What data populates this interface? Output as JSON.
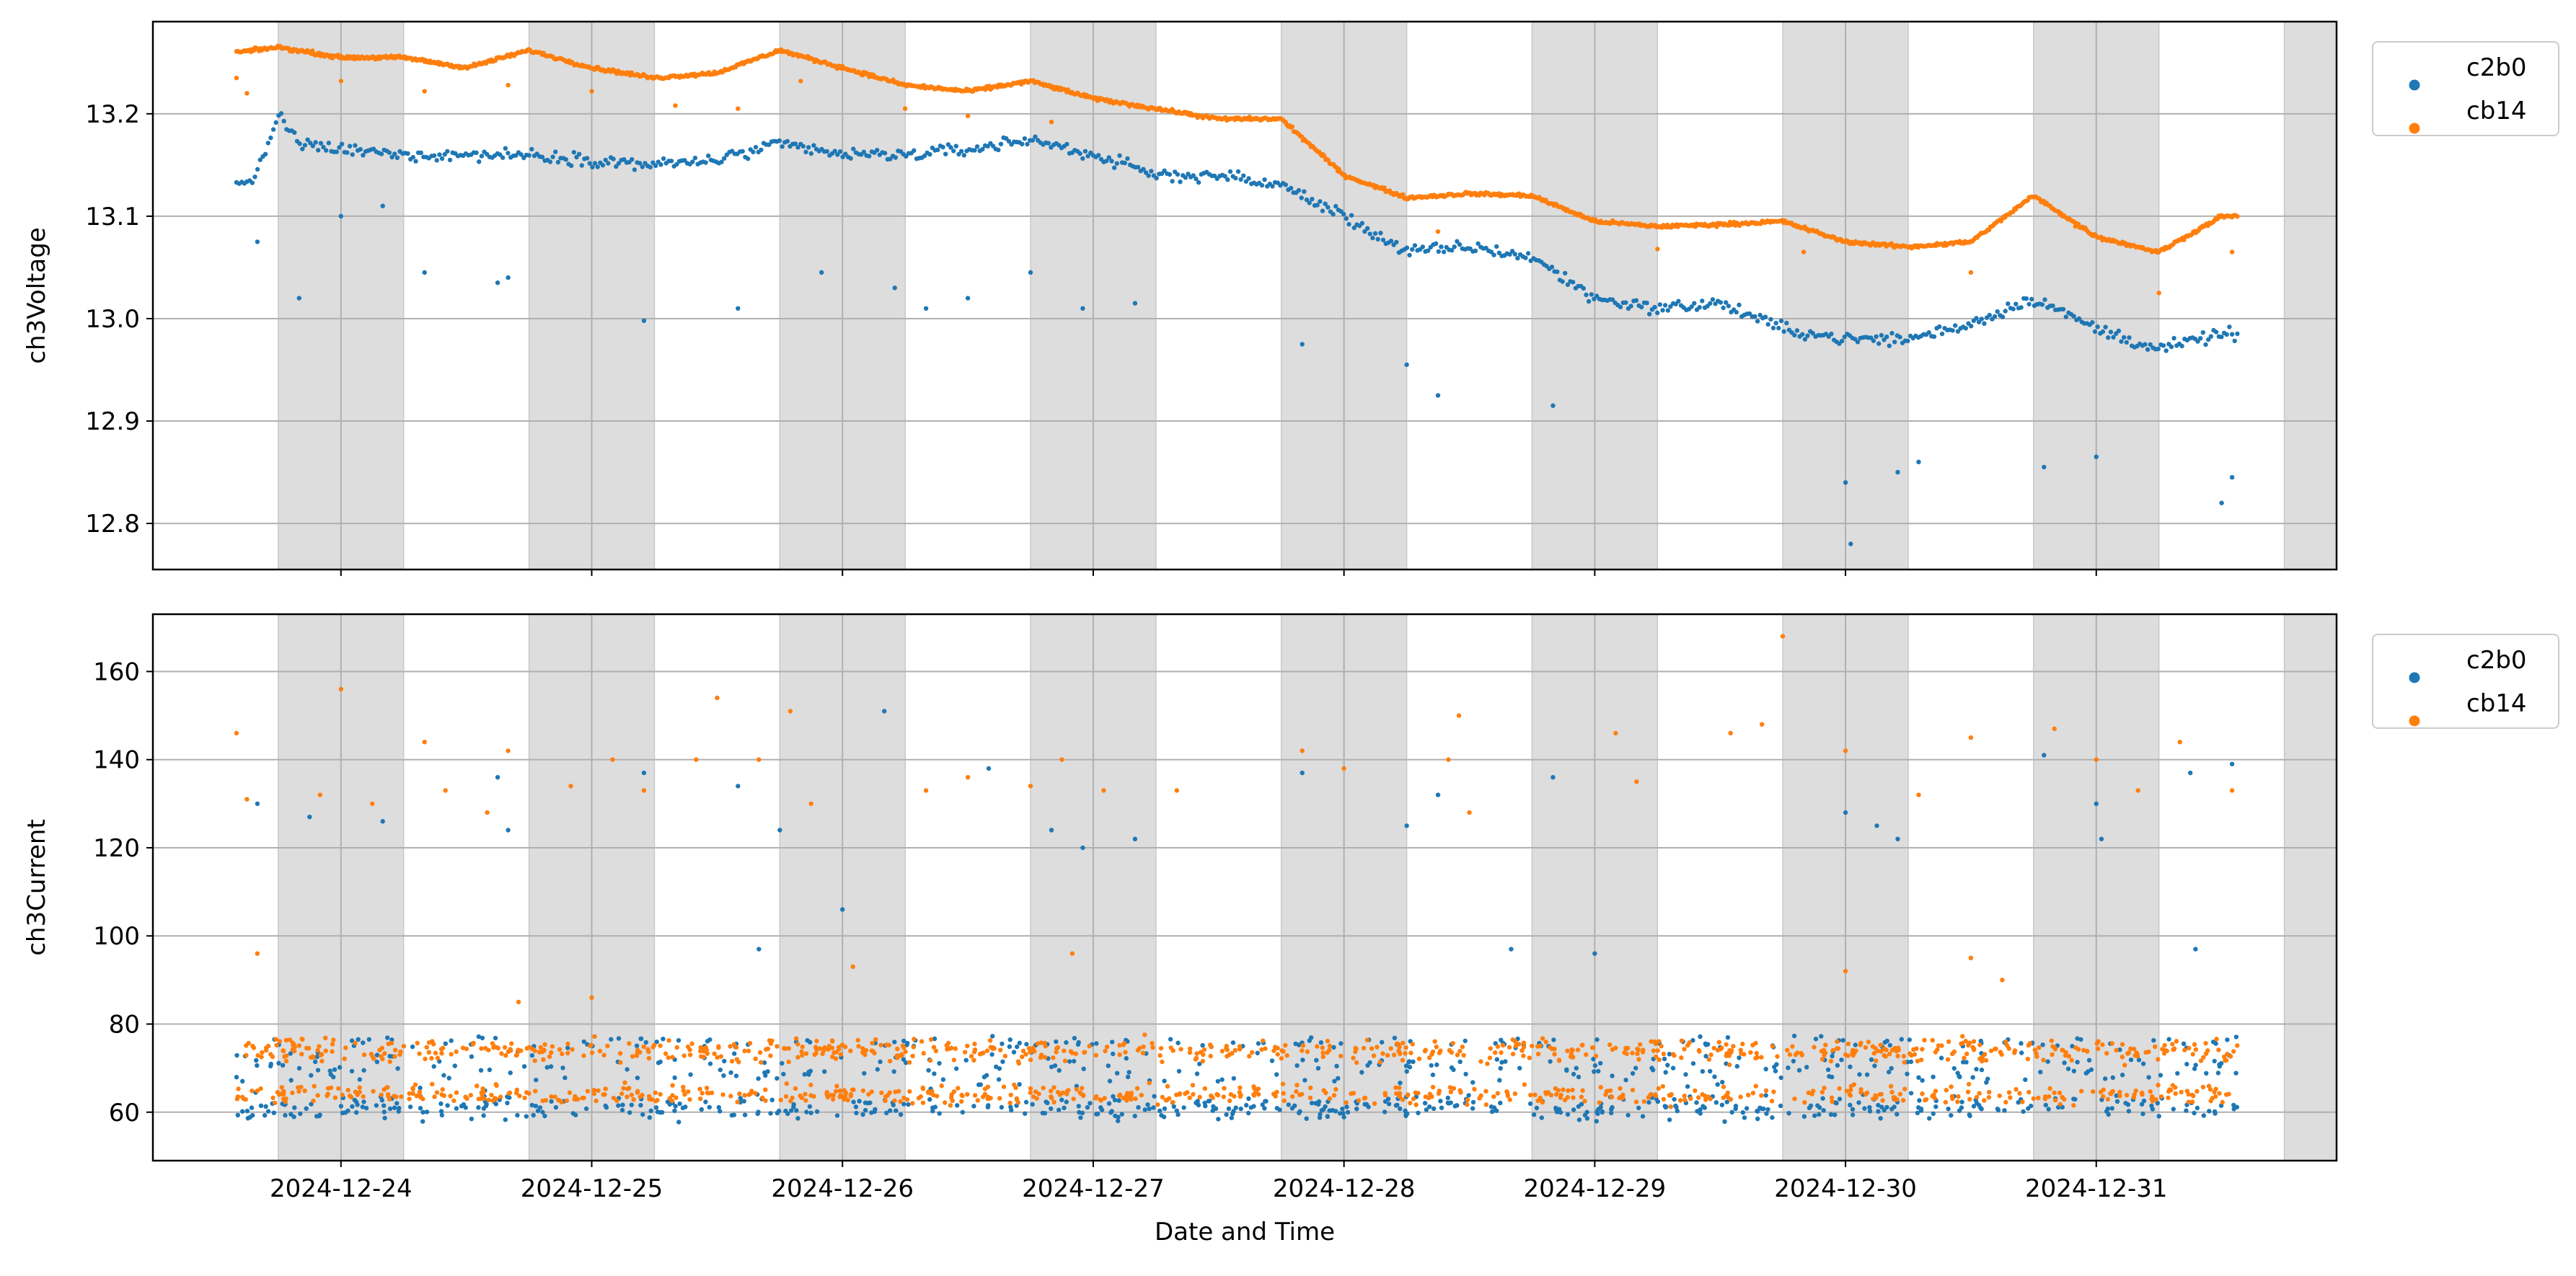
{
  "chart_data": [
    {
      "type": "scatter",
      "ylabel": "ch3Voltage",
      "xlabel": "",
      "ylim": [
        12.755,
        13.29
      ],
      "yticks": [
        12.8,
        12.9,
        13.0,
        13.1,
        13.2
      ],
      "ytick_labels": [
        "12.8",
        "12.9",
        "13.0",
        "13.1",
        "13.2"
      ],
      "xlim": [
        "2024-12-23 06:00",
        "2024-12-31 23:00"
      ],
      "xticks": [
        "2024-12-24",
        "2024-12-25",
        "2024-12-26",
        "2024-12-27",
        "2024-12-28",
        "2024-12-29",
        "2024-12-30",
        "2024-12-31"
      ],
      "grid": true,
      "night_shading": {
        "color": "#dddddd",
        "start_hour": 18,
        "end_hour": 6
      },
      "legend": {
        "position": "outside-top-right",
        "entries": [
          "c2b0",
          "cb14"
        ]
      },
      "series": [
        {
          "name": "c2b0",
          "color": "#1f77b4",
          "points": [
            [
              "2024-12-23 14:00",
              13.13
            ],
            [
              "2024-12-23 16:00",
              13.14
            ],
            [
              "2024-12-23 18:00",
              13.2
            ],
            [
              "2024-12-23 20:00",
              13.17
            ],
            [
              "2024-12-24 00:00",
              13.165
            ],
            [
              "2024-12-24 06:00",
              13.16
            ],
            [
              "2024-12-24 12:00",
              13.16
            ],
            [
              "2024-12-24 18:00",
              13.16
            ],
            [
              "2024-12-25 00:00",
              13.155
            ],
            [
              "2024-12-25 06:00",
              13.15
            ],
            [
              "2024-12-25 12:00",
              13.155
            ],
            [
              "2024-12-25 18:00",
              13.17
            ],
            [
              "2024-12-26 00:00",
              13.16
            ],
            [
              "2024-12-26 06:00",
              13.16
            ],
            [
              "2024-12-26 12:00",
              13.165
            ],
            [
              "2024-12-26 18:00",
              13.175
            ],
            [
              "2024-12-27 00:00",
              13.16
            ],
            [
              "2024-12-27 06:00",
              13.14
            ],
            [
              "2024-12-27 12:00",
              13.14
            ],
            [
              "2024-12-27 18:00",
              13.13
            ],
            [
              "2024-12-28 00:00",
              13.1
            ],
            [
              "2024-12-28 06:00",
              13.065
            ],
            [
              "2024-12-28 12:00",
              13.07
            ],
            [
              "2024-12-28 18:00",
              13.06
            ],
            [
              "2024-12-29 00:00",
              13.02
            ],
            [
              "2024-12-29 06:00",
              13.01
            ],
            [
              "2024-12-29 12:00",
              13.015
            ],
            [
              "2024-12-29 18:00",
              12.99
            ],
            [
              "2024-12-30 00:00",
              12.98
            ],
            [
              "2024-12-30 06:00",
              12.98
            ],
            [
              "2024-12-30 12:00",
              12.995
            ],
            [
              "2024-12-30 18:00",
              13.02
            ],
            [
              "2024-12-31 00:00",
              12.99
            ],
            [
              "2024-12-31 06:00",
              12.97
            ],
            [
              "2024-12-31 12:00",
              12.985
            ]
          ],
          "outliers": [
            [
              "2024-12-23 16:00",
              13.075
            ],
            [
              "2024-12-23 20:00",
              13.02
            ],
            [
              "2024-12-24 00:00",
              13.1
            ],
            [
              "2024-12-24 04:00",
              13.11
            ],
            [
              "2024-12-24 08:00",
              13.045
            ],
            [
              "2024-12-24 15:00",
              13.035
            ],
            [
              "2024-12-24 16:00",
              13.04
            ],
            [
              "2024-12-25 05:00",
              12.998
            ],
            [
              "2024-12-25 14:00",
              13.01
            ],
            [
              "2024-12-25 22:00",
              13.045
            ],
            [
              "2024-12-26 05:00",
              13.03
            ],
            [
              "2024-12-26 08:00",
              13.01
            ],
            [
              "2024-12-26 12:00",
              13.02
            ],
            [
              "2024-12-26 18:00",
              13.045
            ],
            [
              "2024-12-26 23:00",
              13.01
            ],
            [
              "2024-12-27 04:00",
              13.015
            ],
            [
              "2024-12-27 20:00",
              12.975
            ],
            [
              "2024-12-28 06:00",
              12.955
            ],
            [
              "2024-12-28 09:00",
              12.925
            ],
            [
              "2024-12-28 20:00",
              12.915
            ],
            [
              "2024-12-30 00:00",
              12.84
            ],
            [
              "2024-12-30 00:30",
              12.78
            ],
            [
              "2024-12-30 05:00",
              12.85
            ],
            [
              "2024-12-30 07:00",
              12.86
            ],
            [
              "2024-12-30 19:00",
              12.855
            ],
            [
              "2024-12-31 00:00",
              12.865
            ],
            [
              "2024-12-31 12:00",
              12.82
            ],
            [
              "2024-12-31 13:00",
              12.845
            ]
          ]
        },
        {
          "name": "cb14",
          "color": "#ff7f0e",
          "points": [
            [
              "2024-12-23 14:00",
              13.26
            ],
            [
              "2024-12-23 18:00",
              13.265
            ],
            [
              "2024-12-24 00:00",
              13.255
            ],
            [
              "2024-12-24 06:00",
              13.255
            ],
            [
              "2024-12-24 12:00",
              13.245
            ],
            [
              "2024-12-24 18:00",
              13.262
            ],
            [
              "2024-12-25 00:00",
              13.245
            ],
            [
              "2024-12-25 06:00",
              13.235
            ],
            [
              "2024-12-25 12:00",
              13.24
            ],
            [
              "2024-12-25 18:00",
              13.262
            ],
            [
              "2024-12-26 00:00",
              13.245
            ],
            [
              "2024-12-26 06:00",
              13.228
            ],
            [
              "2024-12-26 12:00",
              13.222
            ],
            [
              "2024-12-26 18:00",
              13.232
            ],
            [
              "2024-12-27 00:00",
              13.215
            ],
            [
              "2024-12-27 06:00",
              13.205
            ],
            [
              "2024-12-27 12:00",
              13.195
            ],
            [
              "2024-12-27 18:00",
              13.195
            ],
            [
              "2024-12-28 00:00",
              13.14
            ],
            [
              "2024-12-28 06:00",
              13.118
            ],
            [
              "2024-12-28 12:00",
              13.122
            ],
            [
              "2024-12-28 18:00",
              13.12
            ],
            [
              "2024-12-29 00:00",
              13.095
            ],
            [
              "2024-12-29 06:00",
              13.09
            ],
            [
              "2024-12-29 12:00",
              13.092
            ],
            [
              "2024-12-29 18:00",
              13.095
            ],
            [
              "2024-12-30 00:00",
              13.075
            ],
            [
              "2024-12-30 06:00",
              13.07
            ],
            [
              "2024-12-30 12:00",
              13.075
            ],
            [
              "2024-12-30 18:00",
              13.12
            ],
            [
              "2024-12-31 00:00",
              13.08
            ],
            [
              "2024-12-31 06:00",
              13.065
            ],
            [
              "2024-12-31 12:00",
              13.1
            ]
          ],
          "outliers": [
            [
              "2024-12-23 14:00",
              13.235
            ],
            [
              "2024-12-23 15:00",
              13.22
            ],
            [
              "2024-12-24 00:00",
              13.232
            ],
            [
              "2024-12-24 08:00",
              13.222
            ],
            [
              "2024-12-24 16:00",
              13.228
            ],
            [
              "2024-12-25 00:00",
              13.222
            ],
            [
              "2024-12-25 08:00",
              13.208
            ],
            [
              "2024-12-25 14:00",
              13.205
            ],
            [
              "2024-12-25 20:00",
              13.232
            ],
            [
              "2024-12-26 06:00",
              13.205
            ],
            [
              "2024-12-26 12:00",
              13.198
            ],
            [
              "2024-12-26 20:00",
              13.192
            ],
            [
              "2024-12-28 09:00",
              13.085
            ],
            [
              "2024-12-29 06:00",
              13.068
            ],
            [
              "2024-12-29 20:00",
              13.065
            ],
            [
              "2024-12-30 12:00",
              13.045
            ],
            [
              "2024-12-30 22:00",
              13.09
            ],
            [
              "2024-12-31 06:00",
              13.025
            ],
            [
              "2024-12-31 13:00",
              13.065
            ]
          ]
        }
      ]
    },
    {
      "type": "scatter",
      "ylabel": "ch3Current",
      "xlabel": "Date and Time",
      "ylim": [
        49,
        173
      ],
      "yticks": [
        60,
        80,
        100,
        120,
        140,
        160
      ],
      "ytick_labels": [
        "60",
        "80",
        "100",
        "120",
        "140",
        "160"
      ],
      "xlim": [
        "2024-12-23 06:00",
        "2024-12-31 23:00"
      ],
      "xticks": [
        "2024-12-24",
        "2024-12-25",
        "2024-12-26",
        "2024-12-27",
        "2024-12-28",
        "2024-12-29",
        "2024-12-30",
        "2024-12-31"
      ],
      "xtick_labels": [
        "2024-12-24",
        "2024-12-25",
        "2024-12-26",
        "2024-12-27",
        "2024-12-28",
        "2024-12-29",
        "2024-12-30",
        "2024-12-31"
      ],
      "grid": true,
      "night_shading": {
        "color": "#dddddd",
        "start_hour": 18,
        "end_hour": 6
      },
      "legend": {
        "position": "outside-top-right",
        "entries": [
          "c2b0",
          "cb14"
        ]
      },
      "series": [
        {
          "name": "c2b0",
          "color": "#1f77b4",
          "bands": [
            {
              "center": 61,
              "spread": 4,
              "share": 0.55
            },
            {
              "center": 70,
              "spread": 6,
              "share": 0.3
            },
            {
              "center": 76,
              "spread": 2,
              "share": 0.15
            }
          ],
          "outliers": [
            [
              "2024-12-23 16:00",
              130
            ],
            [
              "2024-12-23 21:00",
              127
            ],
            [
              "2024-12-24 04:00",
              126
            ],
            [
              "2024-12-24 15:00",
              136
            ],
            [
              "2024-12-24 16:00",
              124
            ],
            [
              "2024-12-25 05:00",
              137
            ],
            [
              "2024-12-25 14:00",
              134
            ],
            [
              "2024-12-25 18:00",
              124
            ],
            [
              "2024-12-26 04:00",
              151
            ],
            [
              "2024-12-26 00:00",
              106
            ],
            [
              "2024-12-26 14:00",
              138
            ],
            [
              "2024-12-26 20:00",
              124
            ],
            [
              "2024-12-26 23:00",
              120
            ],
            [
              "2024-12-27 04:00",
              122
            ],
            [
              "2024-12-27 20:00",
              137
            ],
            [
              "2024-12-28 06:00",
              125
            ],
            [
              "2024-12-28 09:00",
              132
            ],
            [
              "2024-12-28 20:00",
              136
            ],
            [
              "2024-12-30 00:00",
              128
            ],
            [
              "2024-12-30 03:00",
              125
            ],
            [
              "2024-12-30 05:00",
              122
            ],
            [
              "2024-12-30 19:00",
              141
            ],
            [
              "2024-12-31 00:00",
              130
            ],
            [
              "2024-12-31 00:30",
              122
            ],
            [
              "2024-12-31 09:00",
              137
            ],
            [
              "2024-12-31 13:00",
              139
            ],
            [
              "2024-12-25 16:00",
              97
            ],
            [
              "2024-12-28 16:00",
              97
            ],
            [
              "2024-12-29 00:00",
              96
            ],
            [
              "2024-12-31 09:30",
              97
            ]
          ]
        },
        {
          "name": "cb14",
          "color": "#ff7f0e",
          "bands": [
            {
              "center": 64,
              "spread": 3,
              "share": 0.45
            },
            {
              "center": 74,
              "spread": 4,
              "share": 0.55
            }
          ],
          "outliers": [
            [
              "2024-12-23 14:00",
              146
            ],
            [
              "2024-12-23 15:00",
              131
            ],
            [
              "2024-12-23 22:00",
              132
            ],
            [
              "2024-12-24 00:00",
              156
            ],
            [
              "2024-12-24 03:00",
              130
            ],
            [
              "2024-12-24 08:00",
              144
            ],
            [
              "2024-12-24 10:00",
              133
            ],
            [
              "2024-12-24 14:00",
              128
            ],
            [
              "2024-12-24 16:00",
              142
            ],
            [
              "2024-12-24 22:00",
              134
            ],
            [
              "2024-12-25 02:00",
              140
            ],
            [
              "2024-12-25 05:00",
              133
            ],
            [
              "2024-12-25 10:00",
              140
            ],
            [
              "2024-12-25 12:00",
              154
            ],
            [
              "2024-12-25 16:00",
              140
            ],
            [
              "2024-12-25 19:00",
              151
            ],
            [
              "2024-12-25 21:00",
              130
            ],
            [
              "2024-12-26 08:00",
              133
            ],
            [
              "2024-12-26 12:00",
              136
            ],
            [
              "2024-12-26 18:00",
              134
            ],
            [
              "2024-12-26 21:00",
              140
            ],
            [
              "2024-12-27 01:00",
              133
            ],
            [
              "2024-12-27 08:00",
              133
            ],
            [
              "2024-12-27 20:00",
              142
            ],
            [
              "2024-12-28 00:00",
              138
            ],
            [
              "2024-12-28 10:00",
              140
            ],
            [
              "2024-12-28 11:00",
              150
            ],
            [
              "2024-12-28 12:00",
              128
            ],
            [
              "2024-12-29 02:00",
              146
            ],
            [
              "2024-12-29 04:00",
              135
            ],
            [
              "2024-12-29 13:00",
              146
            ],
            [
              "2024-12-29 16:00",
              148
            ],
            [
              "2024-12-29 18:00",
              168
            ],
            [
              "2024-12-30 00:00",
              142
            ],
            [
              "2024-12-30 07:00",
              132
            ],
            [
              "2024-12-30 12:00",
              145
            ],
            [
              "2024-12-30 20:00",
              147
            ],
            [
              "2024-12-31 00:00",
              140
            ],
            [
              "2024-12-31 04:00",
              133
            ],
            [
              "2024-12-31 08:00",
              144
            ],
            [
              "2024-12-31 13:00",
              133
            ],
            [
              "2024-12-23 16:00",
              96
            ],
            [
              "2024-12-24 17:00",
              85
            ],
            [
              "2024-12-25 00:00",
              86
            ],
            [
              "2024-12-26 01:00",
              93
            ],
            [
              "2024-12-26 22:00",
              96
            ],
            [
              "2024-12-30 00:00",
              92
            ],
            [
              "2024-12-30 12:00",
              95
            ],
            [
              "2024-12-30 15:00",
              90
            ]
          ]
        }
      ]
    }
  ]
}
